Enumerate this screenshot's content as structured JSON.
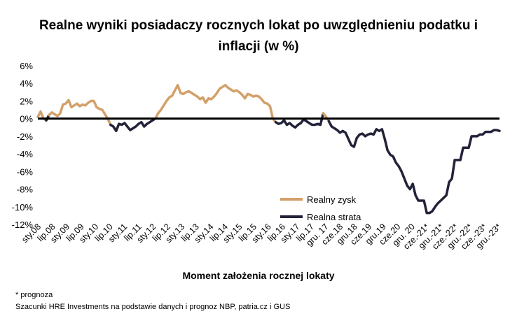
{
  "title_line1": "Realne wyniki posiadaczy rocznych lokat po uwzględnieniu podatku i",
  "title_line2": "inflacji (w %)",
  "xlabel": "Moment założenia rocznej lokaty",
  "footnote1": "* prognoza",
  "footnote2": "Szacunki HRE Investments na podstawie danych i prognoz NBP,  patria.cz  i GUS",
  "colors": {
    "gain": "#D4A06A",
    "loss": "#22223A",
    "zero": "#000000"
  },
  "chart_data": {
    "type": "line",
    "ylim": [
      -12,
      6
    ],
    "yticks": [
      6,
      4,
      2,
      0,
      -2,
      -4,
      -6,
      -8,
      -10,
      -12
    ],
    "ytick_labels": [
      "6%",
      "4%",
      "2%",
      "0%",
      "-2%",
      "-4%",
      "-6%",
      "-8%",
      "-10%",
      "-12%"
    ],
    "x_tick_labels": [
      "sty.08",
      "lip.08",
      "sty.09",
      "lip.09",
      "sty.10",
      "lip.10",
      "sty.11",
      "lip.11",
      "sty.12",
      "lip.12",
      "sty.13",
      "lip.13",
      "sty.14",
      "lip.14",
      "sty.15",
      "lip.15",
      "sty.16",
      "lip.16",
      "sty.17",
      "lip.17",
      "gru. 17",
      "cze.18",
      "gru.18",
      "cze.19",
      "gru.19",
      "cze.20",
      "gru. 20",
      "cze.-21*",
      "gru.-21*",
      "cze.-22*",
      "gru.-22*",
      "cze.-23*",
      "gru.-23*"
    ],
    "legend": [
      "Realny zysk",
      "Realna strata"
    ],
    "legend_position": "bottom-right",
    "grid": false,
    "values": [
      0.2,
      0.8,
      0,
      -0.2,
      0.4,
      0.7,
      0.5,
      0.3,
      0.6,
      1.6,
      1.7,
      2.1,
      1.3,
      1.5,
      1.7,
      1.4,
      1.6,
      1.5,
      1.8,
      2.0,
      2.0,
      1.3,
      1.1,
      1.0,
      0.5,
      0,
      -0.7,
      -0.9,
      -1.4,
      -0.6,
      -0.7,
      -0.5,
      -0.9,
      -1.3,
      -1.1,
      -0.9,
      -0.6,
      -0.4,
      -0.9,
      -0.6,
      -0.4,
      -0.2,
      0,
      0.6,
      1.0,
      1.5,
      2.0,
      2.4,
      2.6,
      3.2,
      3.8,
      2.9,
      2.8,
      3.0,
      3.1,
      2.9,
      2.7,
      2.5,
      2.2,
      2.4,
      1.8,
      2.3,
      2.2,
      2.5,
      2.9,
      3.4,
      3.6,
      3.8,
      3.5,
      3.3,
      3.1,
      3.2,
      3.0,
      2.7,
      2.3,
      2.8,
      2.7,
      2.5,
      2.6,
      2.5,
      2.2,
      1.8,
      1.7,
      1.4,
      0,
      -0.4,
      -0.6,
      -0.5,
      -0.2,
      -0.7,
      -0.5,
      -0.8,
      -1.0,
      -0.7,
      -0.5,
      -0.1,
      -0.3,
      -0.5,
      -0.7,
      -0.7,
      -0.6,
      -0.7,
      0.6,
      0.2,
      -0.3,
      -0.9,
      -1.1,
      -1.3,
      -1.6,
      -1.4,
      -1.6,
      -2.3,
      -3.0,
      -3.2,
      -2.2,
      -1.8,
      -1.7,
      -2.0,
      -1.8,
      -1.7,
      -1.8,
      -1.2,
      -1.4,
      -1.2,
      -2.3,
      -3.6,
      -4.1,
      -4.3,
      -5.0,
      -5.4,
      -6.0,
      -6.8,
      -7.6,
      -8.0,
      -7.4,
      -8.7,
      -9.3,
      -9.3,
      -9.3,
      -10.7,
      -10.7,
      -10.5,
      -10.0,
      -9.6,
      -9.3,
      -9.0,
      -8.7,
      -7.2,
      -6.8,
      -4.7,
      -4.7,
      -4.7,
      -3.3,
      -3.3,
      -3.3,
      -2.0,
      -2.0,
      -2.0,
      -1.8,
      -1.8,
      -1.5,
      -1.5,
      -1.5,
      -1.3,
      -1.3,
      -1.4
    ]
  }
}
